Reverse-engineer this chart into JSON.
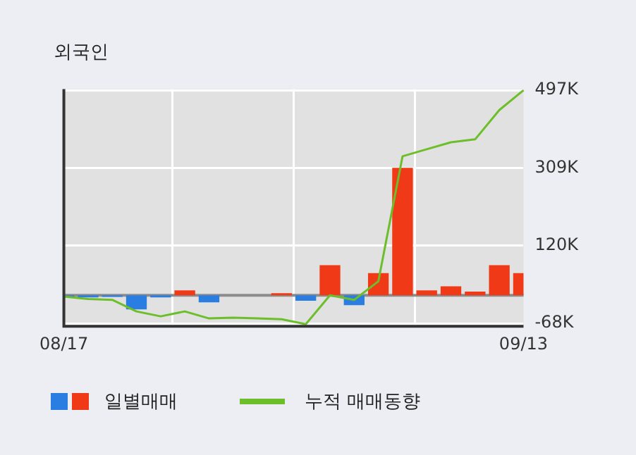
{
  "chart_data": {
    "type": "bar",
    "title": "외국인",
    "categories": [
      "08/17",
      null,
      null,
      null,
      null,
      null,
      null,
      null,
      null,
      null,
      null,
      null,
      null,
      null,
      null,
      null,
      null,
      null,
      null,
      "09/13"
    ],
    "series": [
      {
        "name": "일별매매",
        "colors": [
          "#2a7de1",
          "#2a7de1",
          "#2a7de1",
          "#2a7de1",
          "#2a7de1",
          "#f03a17",
          "#2a7de1",
          "#f03a17",
          "#f03a17",
          "#f03a17",
          "#2a7de1",
          "#f03a17",
          "#2a7de1",
          "#f03a17",
          "#f03a17",
          "#f03a17",
          "#f03a17",
          "#f03a17",
          "#f03a17",
          "#f03a17"
        ],
        "values": [
          -3,
          -5,
          -4,
          -34,
          -5,
          12,
          -17,
          null,
          null,
          5,
          -13,
          73,
          -24,
          54,
          309,
          12,
          22,
          9,
          73,
          54
        ]
      },
      {
        "type": "line",
        "name": "누적 매매동향",
        "color": "#6cbf2a",
        "values": [
          -3,
          -9,
          -11,
          -39,
          -51,
          -39,
          -56,
          -54,
          -56,
          -58,
          -70,
          0,
          -11,
          34,
          337,
          354,
          371,
          378,
          449,
          497
        ]
      }
    ],
    "ylim": [
      -75,
      500
    ],
    "yticks": [
      {
        "value": 497,
        "label": "497K"
      },
      {
        "value": 309,
        "label": "309K"
      },
      {
        "value": 120,
        "label": "120K"
      },
      {
        "value": -68,
        "label": "-68K"
      }
    ],
    "ref_lines": [
      {
        "axis": "y",
        "value": 0,
        "color": "#8c8c8c"
      }
    ],
    "grid": true,
    "legend": "bottom"
  }
}
